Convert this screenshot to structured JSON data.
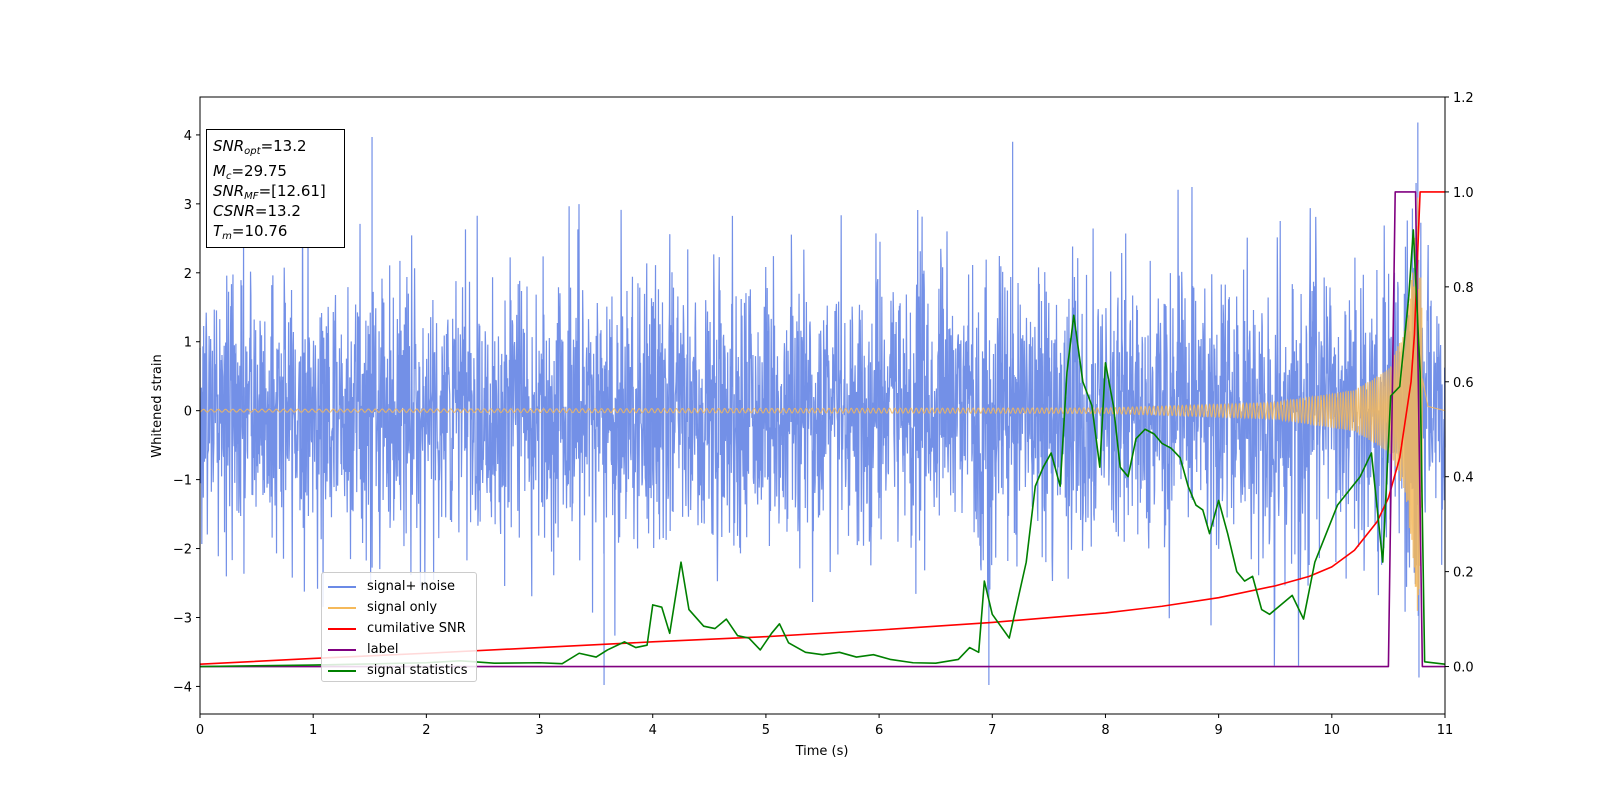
{
  "colors": {
    "signal_noise": "#6b8ae6",
    "signal_only": "#f5b95a",
    "cumulative_snr": "#ff0000",
    "label": "#800080",
    "signal_statistics": "#008000"
  },
  "info_box": {
    "snr_opt": {
      "sym": "SNR",
      "sub": "opt",
      "value": "=13.2"
    },
    "mc": {
      "sym": "M",
      "sub": "c",
      "value": "=29.75"
    },
    "snr_mf": {
      "sym": "SNR",
      "sub": "MF",
      "value": "=[12.61]"
    },
    "csnr": {
      "sym": "CSNR",
      "value": "=13.2"
    },
    "tm": {
      "sym": "T",
      "sub": "m",
      "value": "=10.76"
    }
  },
  "legend": {
    "signal_noise": "signal+ noise",
    "signal_only": "signal only",
    "cumulative_snr": "cumilative SNR",
    "label": "label",
    "signal_statistics": "signal statistics"
  },
  "chart_data": {
    "type": "line",
    "xlabel": "Time (s)",
    "ylabel": "Whitened strain",
    "xlim": [
      0,
      11
    ],
    "ylim_left": [
      -4.4,
      4.55
    ],
    "ylim_right": [
      -0.1,
      1.2
    ],
    "x_ticks": [
      "0",
      "1",
      "2",
      "3",
      "4",
      "5",
      "6",
      "7",
      "8",
      "9",
      "10",
      "11"
    ],
    "y_ticks_left": [
      "−4",
      "−3",
      "−2",
      "−1",
      "0",
      "1",
      "2",
      "3",
      "4"
    ],
    "y_ticks_right": [
      "0.0",
      "0.2",
      "0.4",
      "0.6",
      "0.8",
      "1.0",
      "1.2"
    ],
    "series": [
      {
        "name": "signal+ noise",
        "axis": "left",
        "noise_sigma": 1.0,
        "peaks": [
          [
            1.52,
            3.97
          ],
          [
            3.57,
            -3.98
          ],
          [
            6.97,
            -3.98
          ],
          [
            7.18,
            3.9
          ],
          [
            10.76,
            4.18
          ],
          [
            10.77,
            -3.87
          ]
        ]
      },
      {
        "name": "signal only",
        "axis": "left",
        "chirp_merger_time": 10.76,
        "envelope": [
          [
            0.0,
            0.02
          ],
          [
            8.0,
            0.04
          ],
          [
            9.5,
            0.12
          ],
          [
            10.2,
            0.3
          ],
          [
            10.5,
            0.6
          ],
          [
            10.65,
            1.2
          ],
          [
            10.72,
            2.2
          ],
          [
            10.76,
            3.1
          ],
          [
            10.8,
            1.5
          ],
          [
            10.85,
            0.2
          ],
          [
            11.0,
            0.0
          ]
        ]
      },
      {
        "name": "cumilative SNR",
        "axis": "right",
        "points": [
          [
            0.0,
            0.005
          ],
          [
            1.0,
            0.017
          ],
          [
            2.0,
            0.028
          ],
          [
            3.0,
            0.04
          ],
          [
            4.0,
            0.052
          ],
          [
            5.0,
            0.063
          ],
          [
            6.0,
            0.077
          ],
          [
            7.0,
            0.093
          ],
          [
            8.0,
            0.113
          ],
          [
            8.5,
            0.127
          ],
          [
            9.0,
            0.145
          ],
          [
            9.5,
            0.17
          ],
          [
            9.8,
            0.19
          ],
          [
            10.0,
            0.21
          ],
          [
            10.2,
            0.245
          ],
          [
            10.4,
            0.305
          ],
          [
            10.5,
            0.355
          ],
          [
            10.6,
            0.44
          ],
          [
            10.7,
            0.6
          ],
          [
            10.73,
            0.7
          ],
          [
            10.76,
            0.88
          ],
          [
            10.78,
            1.0
          ],
          [
            11.0,
            1.0
          ]
        ]
      },
      {
        "name": "label",
        "axis": "right",
        "points": [
          [
            0.0,
            0.0
          ],
          [
            10.5,
            0.0
          ],
          [
            10.56,
            1.0
          ],
          [
            10.74,
            1.0
          ],
          [
            10.8,
            0.0
          ],
          [
            11.0,
            0.0
          ]
        ]
      },
      {
        "name": "signal statistics",
        "axis": "right",
        "points": [
          [
            0.0,
            0.0
          ],
          [
            1.0,
            0.003
          ],
          [
            2.0,
            0.008
          ],
          [
            2.3,
            0.012
          ],
          [
            2.6,
            0.007
          ],
          [
            3.0,
            0.008
          ],
          [
            3.2,
            0.006
          ],
          [
            3.35,
            0.028
          ],
          [
            3.5,
            0.02
          ],
          [
            3.6,
            0.035
          ],
          [
            3.75,
            0.052
          ],
          [
            3.85,
            0.04
          ],
          [
            3.95,
            0.045
          ],
          [
            4.0,
            0.13
          ],
          [
            4.08,
            0.125
          ],
          [
            4.15,
            0.07
          ],
          [
            4.25,
            0.22
          ],
          [
            4.32,
            0.12
          ],
          [
            4.45,
            0.085
          ],
          [
            4.55,
            0.08
          ],
          [
            4.65,
            0.1
          ],
          [
            4.75,
            0.065
          ],
          [
            4.85,
            0.06
          ],
          [
            4.95,
            0.035
          ],
          [
            5.05,
            0.07
          ],
          [
            5.12,
            0.09
          ],
          [
            5.2,
            0.05
          ],
          [
            5.35,
            0.03
          ],
          [
            5.5,
            0.025
          ],
          [
            5.65,
            0.03
          ],
          [
            5.8,
            0.02
          ],
          [
            5.95,
            0.025
          ],
          [
            6.1,
            0.015
          ],
          [
            6.3,
            0.008
          ],
          [
            6.5,
            0.007
          ],
          [
            6.7,
            0.015
          ],
          [
            6.8,
            0.04
          ],
          [
            6.88,
            0.03
          ],
          [
            6.93,
            0.18
          ],
          [
            7.0,
            0.11
          ],
          [
            7.15,
            0.06
          ],
          [
            7.3,
            0.22
          ],
          [
            7.38,
            0.38
          ],
          [
            7.45,
            0.42
          ],
          [
            7.52,
            0.45
          ],
          [
            7.6,
            0.38
          ],
          [
            7.66,
            0.62
          ],
          [
            7.72,
            0.74
          ],
          [
            7.8,
            0.6
          ],
          [
            7.88,
            0.55
          ],
          [
            7.95,
            0.42
          ],
          [
            8.0,
            0.64
          ],
          [
            8.07,
            0.55
          ],
          [
            8.13,
            0.42
          ],
          [
            8.2,
            0.4
          ],
          [
            8.27,
            0.48
          ],
          [
            8.35,
            0.5
          ],
          [
            8.43,
            0.49
          ],
          [
            8.5,
            0.47
          ],
          [
            8.58,
            0.46
          ],
          [
            8.66,
            0.44
          ],
          [
            8.73,
            0.38
          ],
          [
            8.8,
            0.34
          ],
          [
            8.86,
            0.33
          ],
          [
            8.92,
            0.28
          ],
          [
            9.0,
            0.35
          ],
          [
            9.08,
            0.28
          ],
          [
            9.16,
            0.2
          ],
          [
            9.23,
            0.18
          ],
          [
            9.3,
            0.19
          ],
          [
            9.38,
            0.12
          ],
          [
            9.45,
            0.11
          ],
          [
            9.55,
            0.13
          ],
          [
            9.65,
            0.15
          ],
          [
            9.75,
            0.1
          ],
          [
            9.85,
            0.22
          ],
          [
            9.95,
            0.28
          ],
          [
            10.05,
            0.34
          ],
          [
            10.15,
            0.37
          ],
          [
            10.25,
            0.4
          ],
          [
            10.35,
            0.45
          ],
          [
            10.45,
            0.22
          ],
          [
            10.52,
            0.57
          ],
          [
            10.6,
            0.59
          ],
          [
            10.68,
            0.78
          ],
          [
            10.72,
            0.92
          ],
          [
            10.78,
            0.62
          ],
          [
            10.82,
            0.01
          ],
          [
            11.0,
            0.005
          ]
        ]
      }
    ]
  }
}
